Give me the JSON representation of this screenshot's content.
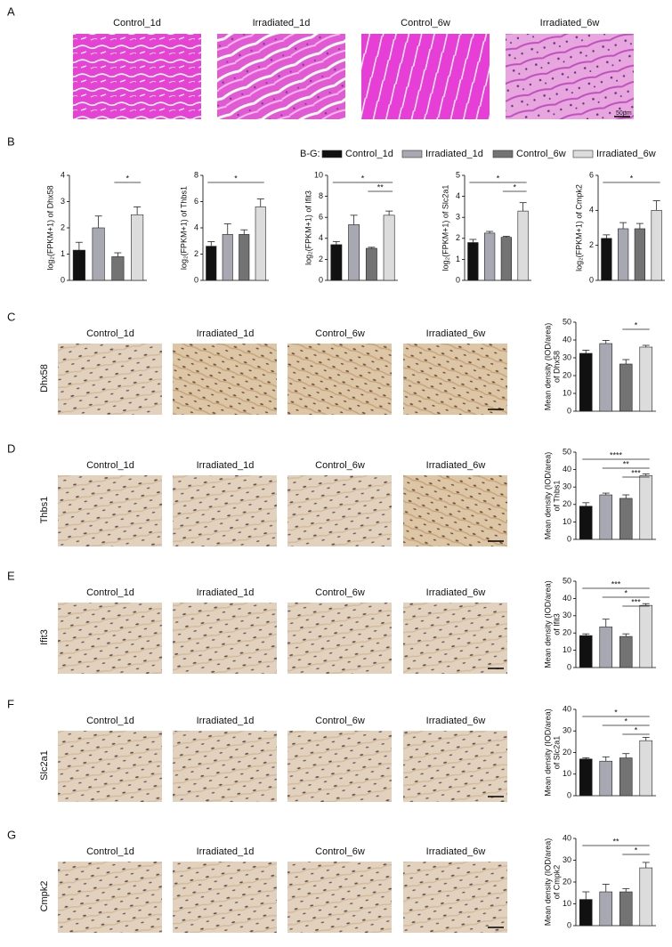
{
  "groups": [
    "Control_1d",
    "Irradiated_1d",
    "Control_6w",
    "Irradiated_6w"
  ],
  "panel_a": {
    "label": "A",
    "scale": "50μm"
  },
  "panel_b": {
    "label": "B"
  },
  "legend": {
    "prefix": "B-G:",
    "series": [
      {
        "name": "Control_1d",
        "color": "#111111"
      },
      {
        "name": "Irradiated_1d",
        "color": "#a8a8b2"
      },
      {
        "name": "Control_6w",
        "color": "#737373"
      },
      {
        "name": "Irradiated_6w",
        "color": "#dcdcdc"
      }
    ]
  },
  "rows": [
    {
      "label": "C",
      "gene": "Dhx58"
    },
    {
      "label": "D",
      "gene": "Thbs1"
    },
    {
      "label": "E",
      "gene": "Ifit3"
    },
    {
      "label": "F",
      "gene": "Slc2a1"
    },
    {
      "label": "G",
      "gene": "Cmpk2"
    }
  ],
  "chart_data": [
    {
      "type": "bar",
      "ylabel": [
        "log₂(FPKM+1) of Dhx58"
      ],
      "ylim": [
        0,
        4
      ],
      "yticks": [
        0,
        1,
        2,
        3,
        4
      ],
      "values": [
        1.15,
        2.0,
        0.9,
        2.5
      ],
      "errors": [
        0.3,
        0.45,
        0.15,
        0.3
      ],
      "annotations": [
        {
          "text": "*",
          "from": 2,
          "to": 3
        }
      ]
    },
    {
      "type": "bar",
      "ylabel": [
        "log₂(FPKM+1) of Thbs1"
      ],
      "ylim": [
        0,
        8
      ],
      "yticks": [
        0,
        2,
        4,
        6,
        8
      ],
      "values": [
        2.6,
        3.5,
        3.5,
        5.6
      ],
      "errors": [
        0.35,
        0.8,
        0.35,
        0.6
      ],
      "annotations": [
        {
          "text": "*",
          "from": 0,
          "to": 3
        }
      ]
    },
    {
      "type": "bar",
      "ylabel": [
        "log₂(FPKM+1) of Ifit3"
      ],
      "ylim": [
        0,
        10
      ],
      "yticks": [
        0,
        2,
        4,
        6,
        8,
        10
      ],
      "values": [
        3.4,
        5.3,
        3.05,
        6.2
      ],
      "errors": [
        0.3,
        0.9,
        0.1,
        0.4
      ],
      "annotations": [
        {
          "text": "*",
          "from": 0,
          "to": 3
        },
        {
          "text": "**",
          "from": 2,
          "to": 3
        }
      ]
    },
    {
      "type": "bar",
      "ylabel": [
        "log₂(FPKM+1) of Slc2a1"
      ],
      "ylim": [
        0,
        5
      ],
      "yticks": [
        0,
        1,
        2,
        3,
        4,
        5
      ],
      "values": [
        1.8,
        2.25,
        2.05,
        3.3
      ],
      "errors": [
        0.15,
        0.08,
        0.05,
        0.4
      ],
      "annotations": [
        {
          "text": "*",
          "from": 0,
          "to": 3
        },
        {
          "text": "*",
          "from": 2,
          "to": 3
        }
      ]
    },
    {
      "type": "bar",
      "ylabel": [
        "log₂(FPKM+1) of Cmpk2"
      ],
      "ylim": [
        0,
        6
      ],
      "yticks": [
        0,
        2,
        4,
        6
      ],
      "values": [
        2.4,
        2.95,
        2.95,
        4.0
      ],
      "errors": [
        0.2,
        0.35,
        0.3,
        0.55
      ],
      "annotations": [
        {
          "text": "*",
          "from": 0,
          "to": 3
        }
      ]
    },
    {
      "type": "bar",
      "ylabel": [
        "Mean density (IOD/area)",
        "of Dhx58"
      ],
      "ylim": [
        0,
        50
      ],
      "yticks": [
        0,
        10,
        20,
        30,
        40,
        50
      ],
      "values": [
        32.5,
        38,
        26.5,
        36
      ],
      "errors": [
        1.8,
        1.8,
        2.5,
        1
      ],
      "annotations": [
        {
          "text": "*",
          "from": 2,
          "to": 3
        }
      ]
    },
    {
      "type": "bar",
      "ylabel": [
        "Mean density (IOD/area)",
        "of Thbs1"
      ],
      "ylim": [
        0,
        50
      ],
      "yticks": [
        0,
        10,
        20,
        30,
        40,
        50
      ],
      "values": [
        19,
        25.5,
        23.5,
        36.5
      ],
      "errors": [
        2,
        1,
        2,
        1
      ],
      "annotations": [
        {
          "text": "****",
          "from": 0,
          "to": 3
        },
        {
          "text": "**",
          "from": 1,
          "to": 3
        },
        {
          "text": "***",
          "from": 2,
          "to": 3
        }
      ]
    },
    {
      "type": "bar",
      "ylabel": [
        "Mean density (IOD/area)",
        "of Ifit3"
      ],
      "ylim": [
        0,
        50
      ],
      "yticks": [
        0,
        10,
        20,
        30,
        40,
        50
      ],
      "values": [
        18.5,
        23.5,
        18,
        36
      ],
      "errors": [
        1,
        4.5,
        1.5,
        1
      ],
      "annotations": [
        {
          "text": "***",
          "from": 0,
          "to": 3
        },
        {
          "text": "*",
          "from": 1,
          "to": 3
        },
        {
          "text": "***",
          "from": 2,
          "to": 3
        }
      ]
    },
    {
      "type": "bar",
      "ylabel": [
        "Mean density (IOD/area)",
        "of Slc2a1"
      ],
      "ylim": [
        0,
        40
      ],
      "yticks": [
        0,
        10,
        20,
        30,
        40
      ],
      "values": [
        17,
        16,
        17.5,
        25.5
      ],
      "errors": [
        0.6,
        2,
        2,
        1.5
      ],
      "annotations": [
        {
          "text": "*",
          "from": 0,
          "to": 3
        },
        {
          "text": "*",
          "from": 1,
          "to": 3
        },
        {
          "text": "*",
          "from": 2,
          "to": 3
        }
      ]
    },
    {
      "type": "bar",
      "ylabel": [
        "Mean density (IOD/area)",
        "of Cmpk2"
      ],
      "ylim": [
        0,
        40
      ],
      "yticks": [
        0,
        10,
        20,
        30,
        40
      ],
      "values": [
        12,
        15.5,
        15.5,
        26.5
      ],
      "errors": [
        3.5,
        3.5,
        1.5,
        2.5
      ],
      "annotations": [
        {
          "text": "**",
          "from": 0,
          "to": 3
        },
        {
          "text": "*",
          "from": 2,
          "to": 3
        }
      ]
    }
  ]
}
